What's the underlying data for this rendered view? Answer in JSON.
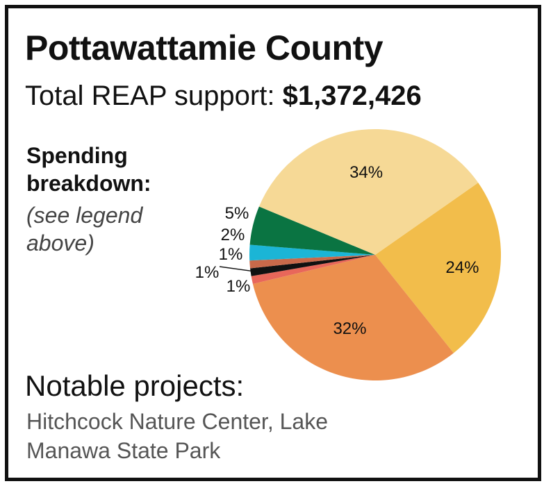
{
  "header": {
    "title": "Pottawattamie County",
    "total_label": "Total REAP support: ",
    "total_amount": "$1,372,426"
  },
  "breakdown": {
    "heading": "Spending breakdown:",
    "note": "(see legend above)"
  },
  "notable": {
    "heading": "Notable projects:",
    "projects": "Hitchcock Nature Center, Lake Manawa State Park"
  },
  "chart_data": {
    "type": "pie",
    "title": "",
    "slices": [
      {
        "label": "24%",
        "value": 24,
        "color": "#F2BD4B"
      },
      {
        "label": "32%",
        "value": 32,
        "color": "#EC8F4E"
      },
      {
        "label": "1%",
        "value": 1,
        "color": "#E8675A"
      },
      {
        "label": "1%",
        "value": 1,
        "color": "#111111"
      },
      {
        "label": "1%",
        "value": 1,
        "color": "#C9694A"
      },
      {
        "label": "2%",
        "value": 2,
        "color": "#1BB5D6"
      },
      {
        "label": "5%",
        "value": 5,
        "color": "#0A7442"
      },
      {
        "label": "34%",
        "value": 34,
        "color": "#F6D996"
      }
    ]
  }
}
